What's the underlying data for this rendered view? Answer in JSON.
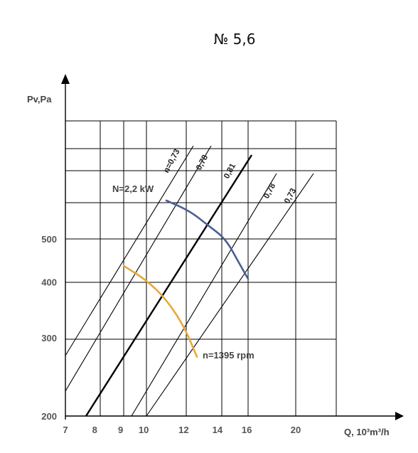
{
  "chart_data": {
    "type": "line",
    "title": "№ 5,6",
    "xlabel": "Q, 10³m³/h",
    "ylabel": "Pv,Pa",
    "x_ticks": [
      7,
      8,
      9,
      10,
      12,
      14,
      16,
      20
    ],
    "y_ticks": [
      200,
      300,
      400,
      500
    ],
    "xlim": [
      7,
      20
    ],
    "ylim": [
      200,
      900
    ],
    "efficiency_lines": [
      {
        "name": "n=0,73",
        "bold": false,
        "points": [
          [
            7,
            267
          ],
          [
            12.1,
            900
          ]
        ]
      },
      {
        "name": "0,78",
        "bold": false,
        "points": [
          [
            7,
            230
          ],
          [
            12.9,
            900
          ]
        ]
      },
      {
        "name": "0,81",
        "bold": true,
        "points": [
          [
            7.7,
            200
          ],
          [
            16,
            900
          ]
        ]
      },
      {
        "name": "0,78",
        "bold": false,
        "points": [
          [
            9.3,
            200
          ],
          [
            20,
            850
          ]
        ]
      },
      {
        "name": "0,73",
        "bold": false,
        "points": [
          [
            10.3,
            200
          ],
          [
            21,
            830
          ]
        ]
      }
    ],
    "series": [
      {
        "name": "N=2,2 kW",
        "color": "#4a5f92",
        "points": [
          [
            11,
            665
          ],
          [
            12.2,
            620
          ],
          [
            13.2,
            560
          ],
          [
            14.3,
            500
          ],
          [
            15.3,
            445
          ],
          [
            16,
            408
          ]
        ]
      },
      {
        "name": "n=1395 rpm",
        "color": "#e6a838",
        "points": [
          [
            9,
            438
          ],
          [
            10,
            405
          ],
          [
            11,
            370
          ],
          [
            11.9,
            322
          ],
          [
            12.6,
            277
          ]
        ]
      }
    ],
    "annotations": {
      "power_label": "N=2,2 kW",
      "speed_label": "n=1395 rpm"
    },
    "grid": true
  }
}
